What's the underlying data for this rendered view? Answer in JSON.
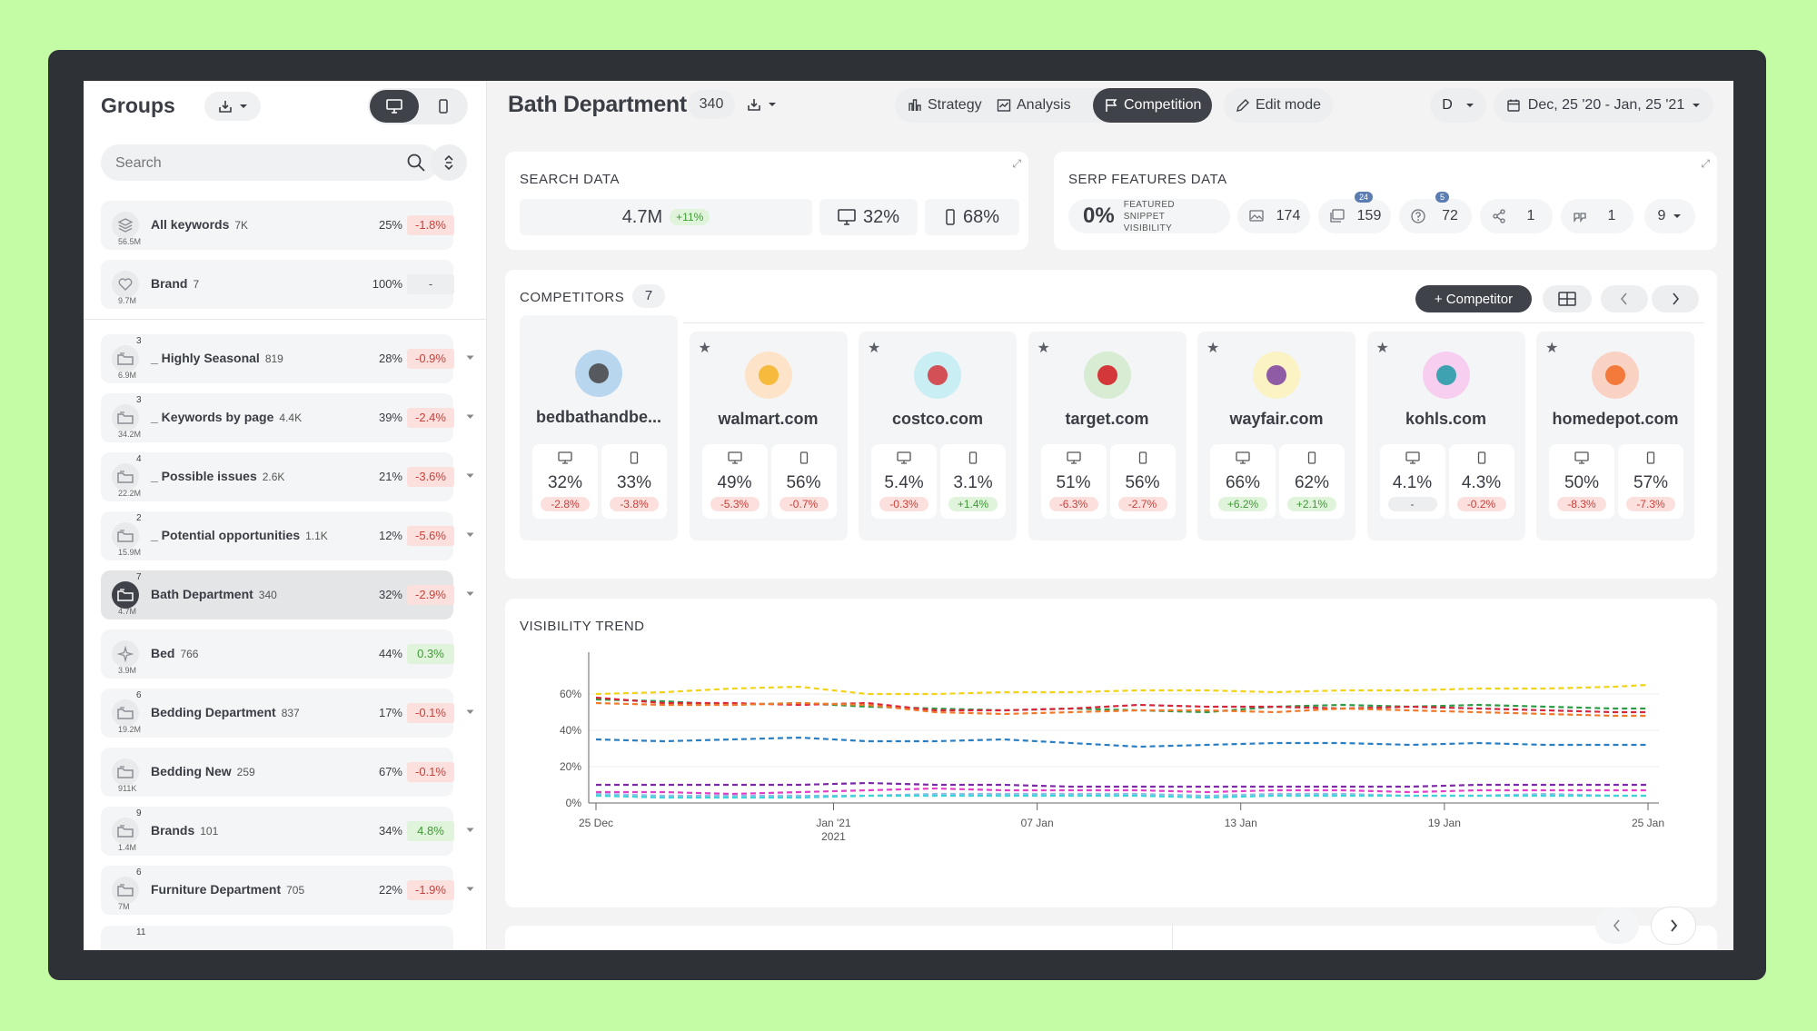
{
  "sidebar": {
    "title": "Groups",
    "search_placeholder": "Search",
    "groups_top": [
      {
        "name": "All keywords",
        "count": "7K",
        "sub": "56.5M",
        "sup": "",
        "pct": "25%",
        "change": "-1.8%",
        "trend": "neg",
        "icon": "stack-icon",
        "caret": false
      },
      {
        "name": "Brand",
        "count": "7",
        "sub": "9.7M",
        "sup": "",
        "pct": "100%",
        "change": "-",
        "trend": "neu",
        "icon": "heart-icon",
        "caret": false
      }
    ],
    "groups": [
      {
        "name": "_ Highly Seasonal",
        "count": "819",
        "sub": "6.9M",
        "sup": "3",
        "pct": "28%",
        "change": "-0.9%",
        "trend": "neg",
        "icon": "folder-icon",
        "caret": true,
        "active": false
      },
      {
        "name": "_ Keywords by page",
        "count": "4.4K",
        "sub": "34.2M",
        "sup": "3",
        "pct": "39%",
        "change": "-2.4%",
        "trend": "neg",
        "icon": "folder-icon",
        "caret": true,
        "active": false
      },
      {
        "name": "_ Possible issues",
        "count": "2.6K",
        "sub": "22.2M",
        "sup": "4",
        "pct": "21%",
        "change": "-3.6%",
        "trend": "neg",
        "icon": "folder-icon",
        "caret": true,
        "active": false
      },
      {
        "name": "_ Potential opportunities",
        "count": "1.1K",
        "sub": "15.9M",
        "sup": "2",
        "pct": "12%",
        "change": "-5.6%",
        "trend": "neg",
        "icon": "folder-icon",
        "caret": true,
        "active": false
      },
      {
        "name": "Bath Department",
        "count": "340",
        "sub": "4.7M",
        "sup": "7",
        "pct": "32%",
        "change": "-2.9%",
        "trend": "neg",
        "icon": "folder-icon",
        "caret": true,
        "active": true
      },
      {
        "name": "Bed",
        "count": "766",
        "sub": "3.9M",
        "sup": "",
        "pct": "44%",
        "change": "0.3%",
        "trend": "pos",
        "icon": "sparkle-icon",
        "caret": false,
        "active": false
      },
      {
        "name": "Bedding Department",
        "count": "837",
        "sub": "19.2M",
        "sup": "6",
        "pct": "17%",
        "change": "-0.1%",
        "trend": "neg",
        "icon": "folder-icon",
        "caret": true,
        "active": false
      },
      {
        "name": "Bedding New",
        "count": "259",
        "sub": "911K",
        "sup": "",
        "pct": "67%",
        "change": "-0.1%",
        "trend": "neg",
        "icon": "folder-icon",
        "caret": false,
        "active": false
      },
      {
        "name": "Brands",
        "count": "101",
        "sub": "1.4M",
        "sup": "9",
        "pct": "34%",
        "change": "4.8%",
        "trend": "pos",
        "icon": "folder-icon",
        "caret": true,
        "active": false
      },
      {
        "name": "Furniture Department",
        "count": "705",
        "sub": "7M",
        "sup": "6",
        "pct": "22%",
        "change": "-1.9%",
        "trend": "neg",
        "icon": "folder-icon",
        "caret": true,
        "active": false
      }
    ],
    "partial_sup": "11"
  },
  "header": {
    "title": "Bath Department",
    "count": "340",
    "tabs": [
      {
        "label": "Strategy",
        "icon": "strategy-icon"
      },
      {
        "label": "Analysis",
        "icon": "analysis-icon"
      },
      {
        "label": "Competition",
        "icon": "flag-icon"
      }
    ],
    "active_tab": "Competition",
    "edit_label": "Edit mode",
    "device_select": "D",
    "date_range": "Dec, 25 '20 - Jan, 25 '21"
  },
  "search_data": {
    "label": "SEARCH DATA",
    "volume": "4.7M",
    "volume_change": "+11%",
    "desktop": "32%",
    "mobile": "68%"
  },
  "serp": {
    "label": "SERP FEATURES DATA",
    "featured_pct": "0%",
    "featured_label_1": "FEATURED",
    "featured_label_2": "SNIPPET",
    "featured_label_3": "VISIBILITY",
    "chips": [
      {
        "icon": "image-icon",
        "value": "174",
        "badge": ""
      },
      {
        "icon": "images-icon",
        "value": "159",
        "badge": "24"
      },
      {
        "icon": "question-icon",
        "value": "72",
        "badge": "5"
      },
      {
        "icon": "share-icon",
        "value": "1",
        "badge": ""
      },
      {
        "icon": "quote-icon",
        "value": "1",
        "badge": ""
      }
    ],
    "more": "9"
  },
  "competitors": {
    "label": "COMPETITORS",
    "count": "7",
    "add_label": "+ Competitor",
    "items": [
      {
        "domain": "bedbathandbe...",
        "own": true,
        "logo_color": "#b9d6ef",
        "logo_inner": "#444",
        "desktop": "32%",
        "desktop_change": "-2.8%",
        "desktop_trend": "neg",
        "mobile": "33%",
        "mobile_change": "-3.8%",
        "mobile_trend": "neg"
      },
      {
        "domain": "walmart.com",
        "own": false,
        "logo_color": "#fde3c8",
        "logo_inner": "#f5b324",
        "desktop": "49%",
        "desktop_change": "-5.3%",
        "desktop_trend": "neg",
        "mobile": "56%",
        "mobile_change": "-0.7%",
        "mobile_trend": "neg"
      },
      {
        "domain": "costco.com",
        "own": false,
        "logo_color": "#c9eff5",
        "logo_inner": "#d3343a",
        "desktop": "5.4%",
        "desktop_change": "-0.3%",
        "desktop_trend": "neg",
        "mobile": "3.1%",
        "mobile_change": "+1.4%",
        "mobile_trend": "pos"
      },
      {
        "domain": "target.com",
        "own": false,
        "logo_color": "#d7ecd2",
        "logo_inner": "#d3181f",
        "desktop": "51%",
        "desktop_change": "-6.3%",
        "desktop_trend": "neg",
        "mobile": "56%",
        "mobile_change": "-2.7%",
        "mobile_trend": "neg"
      },
      {
        "domain": "wayfair.com",
        "own": false,
        "logo_color": "#fbf3c4",
        "logo_inner": "#7b3fa0",
        "desktop": "66%",
        "desktop_change": "+6.2%",
        "desktop_trend": "pos",
        "mobile": "62%",
        "mobile_change": "+2.1%",
        "mobile_trend": "pos"
      },
      {
        "domain": "kohls.com",
        "own": false,
        "logo_color": "#f7cdf0",
        "logo_inner": "#1f9aa6",
        "desktop": "4.1%",
        "desktop_change": "-",
        "desktop_trend": "neu",
        "mobile": "4.3%",
        "mobile_change": "-0.2%",
        "mobile_trend": "neg"
      },
      {
        "domain": "homedepot.com",
        "own": false,
        "logo_color": "#f9d2c4",
        "logo_inner": "#f26b22",
        "desktop": "50%",
        "desktop_change": "-8.3%",
        "desktop_trend": "neg",
        "mobile": "57%",
        "mobile_change": "-7.3%",
        "mobile_trend": "neg"
      }
    ]
  },
  "trend": {
    "label": "VISIBILITY TREND"
  },
  "chart_data": {
    "type": "line",
    "title": "",
    "xlabel": "",
    "ylabel": "",
    "ylim": [
      0,
      80
    ],
    "y_ticks": [
      "0%",
      "20%",
      "40%",
      "60%"
    ],
    "y_tick_values": [
      0,
      20,
      40,
      60
    ],
    "x_ticks": [
      "25 Dec",
      "Jan '21",
      "07 Jan",
      "13 Jan",
      "19 Jan",
      "25 Jan"
    ],
    "x_tick_sub": [
      "",
      "2021",
      "",
      "",
      "",
      ""
    ],
    "x_tick_days": [
      0,
      7,
      13,
      19,
      25,
      31
    ],
    "x_days": [
      0,
      2,
      4,
      6,
      8,
      10,
      12,
      14,
      16,
      18,
      20,
      22,
      24,
      26,
      28,
      30,
      31
    ],
    "grid": true,
    "series": [
      {
        "color": "#f2d31b",
        "values": [
          60,
          61,
          63,
          64,
          60,
          60,
          61,
          61,
          62,
          62,
          61,
          62,
          62,
          63,
          63,
          64,
          65
        ]
      },
      {
        "color": "#2e9a48",
        "values": [
          57,
          56,
          54,
          55,
          53,
          52,
          51,
          52,
          51,
          50,
          53,
          54,
          53,
          54,
          53,
          52,
          52
        ]
      },
      {
        "color": "#d8253a",
        "values": [
          58,
          55,
          55,
          54,
          55,
          51,
          51,
          52,
          54,
          53,
          53,
          52,
          53,
          52,
          51,
          50,
          50
        ]
      },
      {
        "color": "#f07a2c",
        "values": [
          55,
          54,
          54,
          55,
          54,
          50,
          49,
          50,
          51,
          51,
          50,
          52,
          51,
          50,
          49,
          48,
          48
        ]
      },
      {
        "color": "#2b7fc0",
        "values": [
          35,
          34,
          35,
          36,
          34,
          34,
          35,
          33,
          31,
          32,
          33,
          33,
          32,
          33,
          32,
          32,
          32
        ]
      },
      {
        "color": "#7d2aa8",
        "values": [
          10,
          10,
          10,
          10,
          11,
          10,
          10,
          9,
          9,
          9,
          9,
          9,
          9,
          10,
          10,
          10,
          10
        ]
      },
      {
        "color": "#e03fc6",
        "values": [
          6,
          6,
          5,
          6,
          7,
          8,
          7,
          7,
          7,
          6,
          7,
          7,
          6,
          7,
          7,
          7,
          7
        ]
      },
      {
        "color": "#8dbfe8",
        "values": [
          5,
          4,
          4,
          4,
          4,
          5,
          5,
          5,
          5,
          4,
          5,
          5,
          4,
          4,
          5,
          4,
          4
        ]
      },
      {
        "color": "#3dd3d8",
        "values": [
          4,
          3,
          3,
          3,
          4,
          4,
          4,
          4,
          4,
          3,
          4,
          4,
          4,
          4,
          4,
          4,
          4
        ]
      }
    ]
  }
}
